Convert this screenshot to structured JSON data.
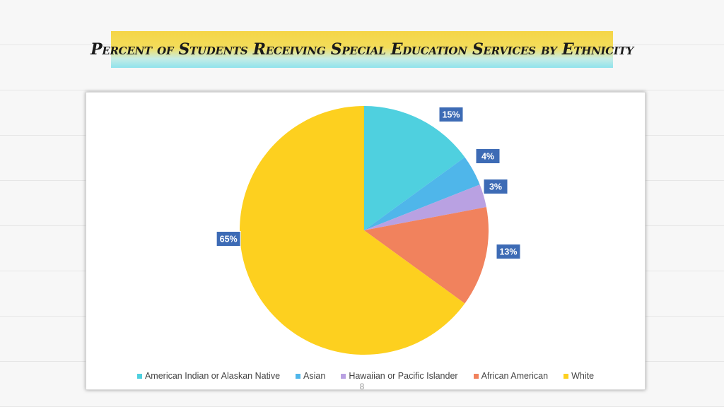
{
  "slide": {
    "title": "Percent of Students Receiving Special Education Services by Ethnicity",
    "page_number": "8"
  },
  "chart_data": {
    "type": "pie",
    "title": "",
    "categories": [
      "American Indian or Alaskan Native",
      "Asian",
      "Hawaiian or Pacific Islander",
      "African American",
      "White"
    ],
    "values": [
      15,
      4,
      3,
      13,
      65
    ],
    "data_labels": [
      "15%",
      "4%",
      "3%",
      "13%",
      "65%"
    ],
    "colors": [
      "#4fd0df",
      "#4fb6ea",
      "#b9a1e2",
      "#f1825d",
      "#fdd01f"
    ],
    "label_color": "#3d6bb5",
    "legend_position": "bottom"
  }
}
